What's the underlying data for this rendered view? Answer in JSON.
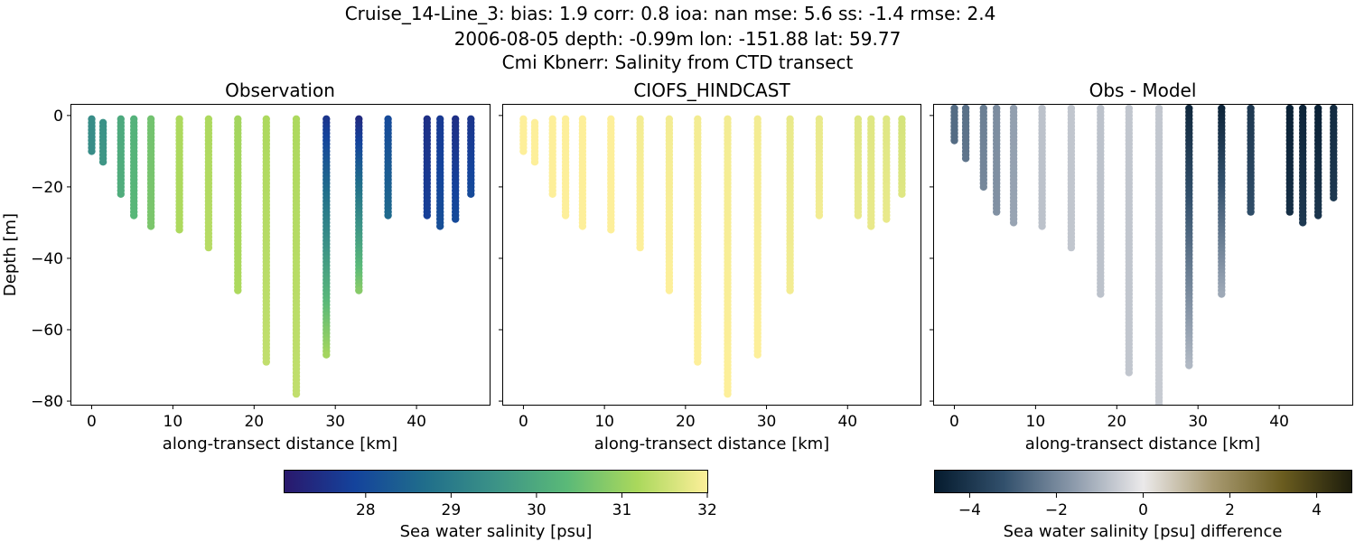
{
  "title_lines": [
    "Cruise_14-Line_3: bias: 1.9  corr: 0.8  ioa: nan  mse: 5.6  ss: -1.4  rmse: 2.4",
    "2006-08-05 depth: -0.99m lon: -151.88 lat: 59.77",
    "Cmi Kbnerr: Salinity from CTD transect"
  ],
  "chart_data": [
    {
      "type": "scatter",
      "title": "Observation",
      "xlabel": "along-transect distance [km]",
      "ylabel": "Depth [m]",
      "xlim": [
        -2.5,
        49.0
      ],
      "ylim": [
        -81,
        3
      ],
      "xticks": [
        0,
        10,
        20,
        30,
        40
      ],
      "yticks": [
        0,
        -20,
        -40,
        -60,
        -80
      ],
      "xtick_labels": [
        "0",
        "10",
        "20",
        "30",
        "40"
      ],
      "ytick_labels": [
        "0",
        "−20",
        "−40",
        "−60",
        "−80"
      ],
      "colormap": "haline",
      "profiles": [
        {
          "x": 0.0,
          "top": -1,
          "bottom": -10,
          "value_top": 29.4,
          "value_bottom": 29.4
        },
        {
          "x": 1.4,
          "top": -2,
          "bottom": -13,
          "value_top": 29.5,
          "value_bottom": 29.6
        },
        {
          "x": 3.6,
          "top": -1,
          "bottom": -22,
          "value_top": 30.0,
          "value_bottom": 30.1
        },
        {
          "x": 5.2,
          "top": -1,
          "bottom": -28,
          "value_top": 30.2,
          "value_bottom": 30.3
        },
        {
          "x": 7.3,
          "top": -1,
          "bottom": -31,
          "value_top": 30.6,
          "value_bottom": 30.7
        },
        {
          "x": 10.8,
          "top": -1,
          "bottom": -32,
          "value_top": 31.2,
          "value_bottom": 31.2
        },
        {
          "x": 14.4,
          "top": -1,
          "bottom": -37,
          "value_top": 31.2,
          "value_bottom": 31.3
        },
        {
          "x": 18.0,
          "top": -1,
          "bottom": -49,
          "value_top": 31.1,
          "value_bottom": 31.2
        },
        {
          "x": 21.5,
          "top": -1,
          "bottom": -69,
          "value_top": 31.2,
          "value_bottom": 31.4
        },
        {
          "x": 25.2,
          "top": -1,
          "bottom": -78,
          "value_top": 31.2,
          "value_bottom": 31.4
        },
        {
          "x": 28.9,
          "top": -1,
          "bottom": -67,
          "value_top": 27.6,
          "value_bottom": 31.1
        },
        {
          "x": 32.9,
          "top": -1,
          "bottom": -49,
          "value_top": 27.4,
          "value_bottom": 30.8
        },
        {
          "x": 36.5,
          "top": -1,
          "bottom": -28,
          "value_top": 28.0,
          "value_bottom": 28.6
        },
        {
          "x": 41.3,
          "top": -1,
          "bottom": -28,
          "value_top": 27.5,
          "value_bottom": 27.8
        },
        {
          "x": 42.9,
          "top": -1,
          "bottom": -31,
          "value_top": 27.7,
          "value_bottom": 28.1
        },
        {
          "x": 44.8,
          "top": -1,
          "bottom": -29,
          "value_top": 27.5,
          "value_bottom": 28.0
        },
        {
          "x": 46.7,
          "top": -1,
          "bottom": -22,
          "value_top": 27.6,
          "value_bottom": 28.0
        }
      ]
    },
    {
      "type": "scatter",
      "title": "CIOFS_HINDCAST",
      "xlabel": "along-transect distance [km]",
      "xlim": [
        -2.5,
        49.0
      ],
      "ylim": [
        -81,
        3
      ],
      "xticks": [
        0,
        10,
        20,
        30,
        40
      ],
      "xtick_labels": [
        "0",
        "10",
        "20",
        "30",
        "40"
      ],
      "colormap": "haline",
      "profiles": [
        {
          "x": 0.0,
          "top": -1,
          "bottom": -10,
          "value_top": 32.0,
          "value_bottom": 32.0
        },
        {
          "x": 1.4,
          "top": -2,
          "bottom": -13,
          "value_top": 32.0,
          "value_bottom": 32.0
        },
        {
          "x": 3.6,
          "top": -1,
          "bottom": -22,
          "value_top": 32.0,
          "value_bottom": 32.0
        },
        {
          "x": 5.2,
          "top": -1,
          "bottom": -28,
          "value_top": 32.0,
          "value_bottom": 32.0
        },
        {
          "x": 7.3,
          "top": -1,
          "bottom": -31,
          "value_top": 32.0,
          "value_bottom": 32.0
        },
        {
          "x": 10.8,
          "top": -1,
          "bottom": -32,
          "value_top": 32.0,
          "value_bottom": 32.0
        },
        {
          "x": 14.4,
          "top": -1,
          "bottom": -37,
          "value_top": 31.9,
          "value_bottom": 32.0
        },
        {
          "x": 18.0,
          "top": -1,
          "bottom": -49,
          "value_top": 31.9,
          "value_bottom": 32.0
        },
        {
          "x": 21.5,
          "top": -1,
          "bottom": -69,
          "value_top": 31.9,
          "value_bottom": 32.0
        },
        {
          "x": 25.2,
          "top": -1,
          "bottom": -78,
          "value_top": 31.9,
          "value_bottom": 32.0
        },
        {
          "x": 28.9,
          "top": -1,
          "bottom": -67,
          "value_top": 31.9,
          "value_bottom": 32.0
        },
        {
          "x": 32.9,
          "top": -1,
          "bottom": -49,
          "value_top": 31.8,
          "value_bottom": 31.9
        },
        {
          "x": 36.5,
          "top": -1,
          "bottom": -28,
          "value_top": 31.8,
          "value_bottom": 31.9
        },
        {
          "x": 41.3,
          "top": -1,
          "bottom": -28,
          "value_top": 31.7,
          "value_bottom": 31.8
        },
        {
          "x": 42.9,
          "top": -1,
          "bottom": -31,
          "value_top": 31.7,
          "value_bottom": 31.8
        },
        {
          "x": 44.8,
          "top": -1,
          "bottom": -29,
          "value_top": 31.7,
          "value_bottom": 31.8
        },
        {
          "x": 46.7,
          "top": -1,
          "bottom": -22,
          "value_top": 31.6,
          "value_bottom": 31.7
        }
      ]
    },
    {
      "type": "scatter",
      "title": "Obs - Model",
      "xlabel": "along-transect distance [km]",
      "xlim": [
        -2.5,
        49.0
      ],
      "ylim": [
        -81,
        3
      ],
      "xticks": [
        0,
        10,
        20,
        30,
        40
      ],
      "xtick_labels": [
        "0",
        "10",
        "20",
        "30",
        "40"
      ],
      "colormap": "diff",
      "profiles": [
        {
          "x": 0.0,
          "top": 2,
          "bottom": -7,
          "value_top": -2.6,
          "value_bottom": -2.6
        },
        {
          "x": 1.4,
          "top": 2,
          "bottom": -12,
          "value_top": -2.5,
          "value_bottom": -2.4
        },
        {
          "x": 3.6,
          "top": 2,
          "bottom": -20,
          "value_top": -2.2,
          "value_bottom": -2.0
        },
        {
          "x": 5.2,
          "top": 2,
          "bottom": -27,
          "value_top": -1.9,
          "value_bottom": -1.8
        },
        {
          "x": 7.3,
          "top": 2,
          "bottom": -30,
          "value_top": -1.5,
          "value_bottom": -1.4
        },
        {
          "x": 10.8,
          "top": 2,
          "bottom": -31,
          "value_top": -0.8,
          "value_bottom": -0.8
        },
        {
          "x": 14.4,
          "top": 2,
          "bottom": -37,
          "value_top": -0.7,
          "value_bottom": -0.7
        },
        {
          "x": 18.0,
          "top": 2,
          "bottom": -50,
          "value_top": -0.8,
          "value_bottom": -0.8
        },
        {
          "x": 21.5,
          "top": 2,
          "bottom": -72,
          "value_top": -0.7,
          "value_bottom": -0.7
        },
        {
          "x": 25.2,
          "top": 2,
          "bottom": -81,
          "value_top": -0.7,
          "value_bottom": -0.6
        },
        {
          "x": 28.9,
          "top": 2,
          "bottom": -70,
          "value_top": -4.4,
          "value_bottom": -1.0
        },
        {
          "x": 32.9,
          "top": 2,
          "bottom": -50,
          "value_top": -4.5,
          "value_bottom": -1.3
        },
        {
          "x": 36.5,
          "top": 2,
          "bottom": -27,
          "value_top": -3.9,
          "value_bottom": -3.3
        },
        {
          "x": 41.3,
          "top": 2,
          "bottom": -27,
          "value_top": -4.6,
          "value_bottom": -4.2
        },
        {
          "x": 42.9,
          "top": 2,
          "bottom": -30,
          "value_top": -4.5,
          "value_bottom": -3.9
        },
        {
          "x": 44.8,
          "top": 2,
          "bottom": -28,
          "value_top": -4.6,
          "value_bottom": -4.0
        },
        {
          "x": 46.7,
          "top": 2,
          "bottom": -23,
          "value_top": -4.3,
          "value_bottom": -3.9
        }
      ]
    }
  ],
  "colorbars": [
    {
      "label": "Sea water salinity [psu]",
      "range": [
        27.05,
        32.0
      ],
      "colormap": "haline",
      "ticks": [
        28,
        29,
        30,
        31,
        32
      ],
      "tick_labels": [
        "28",
        "29",
        "30",
        "31",
        "32"
      ]
    },
    {
      "label": "Sea water salinity [psu] difference",
      "range": [
        -4.8,
        4.8
      ],
      "colormap": "diff",
      "ticks": [
        -4,
        -2,
        0,
        2,
        4
      ],
      "tick_labels": [
        "−4",
        "−2",
        "0",
        "2",
        "4"
      ]
    }
  ],
  "colors": {
    "haline": [
      "#2a186c",
      "#14439c",
      "#206e8b",
      "#3c9387",
      "#5ab978",
      "#aad85c",
      "#fdef9a"
    ],
    "diff": [
      "#051b2e",
      "#32506c",
      "#8c9aab",
      "#ebe9ea",
      "#a89a71",
      "#6a5c1f",
      "#1d1d0c"
    ]
  }
}
